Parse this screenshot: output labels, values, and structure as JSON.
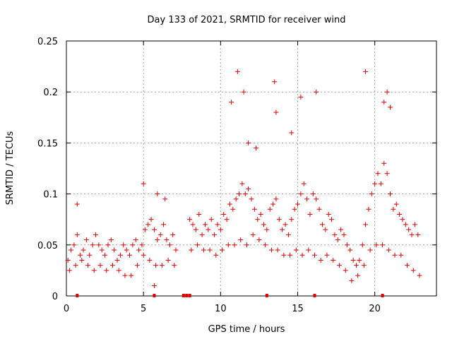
{
  "chart_data": {
    "type": "scatter",
    "title": "Day 133 of 2021, SRMTID for receiver wind",
    "xlabel": "GPS time / hours",
    "ylabel": "SRMTID / TECUs",
    "xlim": [
      0,
      24
    ],
    "ylim": [
      0,
      0.25
    ],
    "xticks": [
      0,
      5,
      10,
      15,
      20
    ],
    "xtick_labels": [
      "0",
      "5",
      "10",
      "15",
      "20"
    ],
    "yticks": [
      0,
      0.05,
      0.1,
      0.15,
      0.2,
      0.25
    ],
    "ytick_labels": [
      "0",
      "0.05",
      "0.1",
      "0.15",
      "0.2",
      "0.25"
    ],
    "grid": true,
    "marker": "+",
    "color": "#e00000",
    "series": [
      {
        "name": "SRMTID",
        "x": [
          0.1,
          0.3,
          0.5,
          0.7,
          0.9,
          1.1,
          1.3,
          1.5,
          1.7,
          1.9,
          2.1,
          2.3,
          2.5,
          2.7,
          2.9,
          3.1,
          3.3,
          3.5,
          3.7,
          3.9,
          4.1,
          4.3,
          4.5,
          4.7,
          4.9,
          5.1,
          5.3,
          5.5,
          5.7,
          5.9,
          6.1,
          6.3,
          6.5,
          6.7,
          6.9,
          7.1,
          8.0,
          8.2,
          8.4,
          8.6,
          8.8,
          9.0,
          9.2,
          9.4,
          9.6,
          9.8,
          10.0,
          10.2,
          10.4,
          10.6,
          10.8,
          11.0,
          11.2,
          11.4,
          11.6,
          11.8,
          12.0,
          12.2,
          12.4,
          12.6,
          12.8,
          13.0,
          13.2,
          13.4,
          13.6,
          13.8,
          14.0,
          14.2,
          14.4,
          14.6,
          14.8,
          15.0,
          15.2,
          15.4,
          15.6,
          15.8,
          16.0,
          16.2,
          16.4,
          16.6,
          16.8,
          17.0,
          17.2,
          17.4,
          17.6,
          17.8,
          18.0,
          18.2,
          18.4,
          18.6,
          18.8,
          19.0,
          19.2,
          19.4,
          19.6,
          19.8,
          20.0,
          20.2,
          20.4,
          20.6,
          20.8,
          21.0,
          21.2,
          21.4,
          21.6,
          21.8,
          22.0,
          22.2,
          22.4,
          22.6,
          22.8,
          0.2,
          0.6,
          1.0,
          1.4,
          1.8,
          2.2,
          2.6,
          3.0,
          3.4,
          3.8,
          4.2,
          4.6,
          5.0,
          5.4,
          5.8,
          6.2,
          6.6,
          7.0,
          8.1,
          8.5,
          8.9,
          9.3,
          9.7,
          10.1,
          10.5,
          10.9,
          11.3,
          11.7,
          12.1,
          12.5,
          12.9,
          13.3,
          13.7,
          14.1,
          14.5,
          14.9,
          15.3,
          15.7,
          16.1,
          16.5,
          16.9,
          17.3,
          17.7,
          18.1,
          18.5,
          18.9,
          19.3,
          19.7,
          20.1,
          20.5,
          20.9,
          21.3,
          21.7,
          22.1,
          22.5,
          22.9,
          10.7,
          11.1,
          11.5,
          13.5,
          13.6,
          15.2,
          16.2,
          19.4,
          20.6,
          20.8,
          21.0,
          0.7,
          5.0,
          5.7,
          5.9,
          6.4,
          11.8,
          12.3,
          14.6
        ],
        "y": [
          0.035,
          0.045,
          0.05,
          0.06,
          0.04,
          0.045,
          0.055,
          0.04,
          0.05,
          0.06,
          0.05,
          0.045,
          0.04,
          0.05,
          0.055,
          0.045,
          0.035,
          0.04,
          0.05,
          0.045,
          0.04,
          0.05,
          0.055,
          0.045,
          0.05,
          0.065,
          0.07,
          0.075,
          0.065,
          0.055,
          0.06,
          0.07,
          0.055,
          0.05,
          0.06,
          0.045,
          0.075,
          0.07,
          0.065,
          0.08,
          0.06,
          0.07,
          0.065,
          0.075,
          0.06,
          0.07,
          0.065,
          0.08,
          0.075,
          0.09,
          0.085,
          0.095,
          0.1,
          0.11,
          0.1,
          0.105,
          0.095,
          0.085,
          0.075,
          0.08,
          0.07,
          0.065,
          0.085,
          0.09,
          0.095,
          0.075,
          0.065,
          0.07,
          0.06,
          0.075,
          0.085,
          0.09,
          0.1,
          0.11,
          0.095,
          0.08,
          0.1,
          0.095,
          0.085,
          0.07,
          0.065,
          0.08,
          0.075,
          0.06,
          0.055,
          0.065,
          0.06,
          0.05,
          0.045,
          0.035,
          0.03,
          0.035,
          0.05,
          0.07,
          0.085,
          0.1,
          0.11,
          0.12,
          0.11,
          0.13,
          0.12,
          0.1,
          0.085,
          0.09,
          0.08,
          0.075,
          0.07,
          0.065,
          0.06,
          0.07,
          0.06,
          0.025,
          0.03,
          0.035,
          0.03,
          0.025,
          0.03,
          0.025,
          0.03,
          0.025,
          0.02,
          0.02,
          0.03,
          0.04,
          0.035,
          0.03,
          0.03,
          0.035,
          0.03,
          0.045,
          0.05,
          0.045,
          0.045,
          0.04,
          0.045,
          0.05,
          0.05,
          0.055,
          0.05,
          0.06,
          0.055,
          0.05,
          0.045,
          0.045,
          0.04,
          0.04,
          0.045,
          0.04,
          0.045,
          0.04,
          0.035,
          0.04,
          0.035,
          0.03,
          0.025,
          0.015,
          0.02,
          0.03,
          0.045,
          0.05,
          0.05,
          0.045,
          0.04,
          0.04,
          0.03,
          0.025,
          0.02,
          0.19,
          0.22,
          0.2,
          0.21,
          0.18,
          0.195,
          0.2,
          0.22,
          0.19,
          0.2,
          0.185,
          0.09,
          0.11,
          0.01,
          0.1,
          0.095,
          0.15,
          0.145,
          0.16
        ],
        "markers": true
      }
    ],
    "data_gaps_x": [
      0.7,
      5.7,
      7.6,
      7.8,
      8.0,
      13.0,
      16.1,
      20.5
    ]
  }
}
